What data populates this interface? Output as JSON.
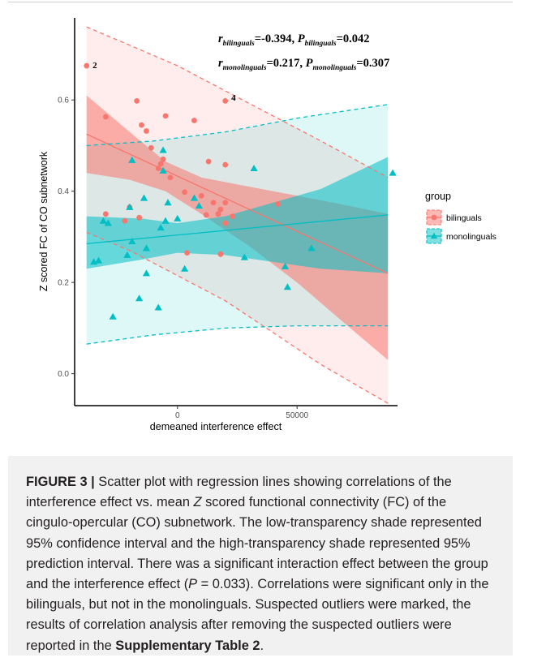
{
  "chart_data": {
    "type": "scatter",
    "xlabel": "demeaned interference effect",
    "ylabel": "Z scored FC of CO subnetwork",
    "xlim": [
      -43000,
      92000
    ],
    "ylim": [
      -0.07,
      0.78
    ],
    "xticks": [
      0,
      50000
    ],
    "xtick_labels": [
      "0",
      "50000"
    ],
    "yticks": [
      0.0,
      0.2,
      0.4,
      0.6
    ],
    "ytick_labels": [
      "0.0",
      "0.2",
      "0.4",
      "0.6"
    ],
    "grid": false,
    "legend_title": "group",
    "legend_position": "right",
    "series": [
      {
        "name": "bilinguals",
        "color": "#f8766d",
        "marker": "circle",
        "points": [
          [
            -38000,
            0.675
          ],
          [
            -30000,
            0.563
          ],
          [
            -17000,
            0.598
          ],
          [
            -15000,
            0.545
          ],
          [
            -13000,
            0.532
          ],
          [
            -5000,
            0.565
          ],
          [
            7000,
            0.555
          ],
          [
            20000,
            0.598
          ],
          [
            -11000,
            0.495
          ],
          [
            -7000,
            0.46
          ],
          [
            -6000,
            0.47
          ],
          [
            -8000,
            0.45
          ],
          [
            -3000,
            0.43
          ],
          [
            13000,
            0.465
          ],
          [
            20000,
            0.458
          ],
          [
            3000,
            0.398
          ],
          [
            10000,
            0.39
          ],
          [
            20000,
            0.375
          ],
          [
            15000,
            0.375
          ],
          [
            18000,
            0.36
          ],
          [
            23000,
            0.345
          ],
          [
            -30000,
            0.35
          ],
          [
            -20000,
            0.365
          ],
          [
            -22000,
            0.335
          ],
          [
            -16000,
            0.342
          ],
          [
            17000,
            0.35
          ],
          [
            12000,
            0.348
          ],
          [
            20000,
            0.33
          ],
          [
            42000,
            0.372
          ],
          [
            4000,
            0.265
          ],
          [
            18000,
            0.262
          ]
        ],
        "fit": {
          "x0": -38000,
          "y0": 0.525,
          "x1": 88000,
          "y1": 0.22
        },
        "conf_upper": [
          [
            -38000,
            0.61
          ],
          [
            -20000,
            0.53
          ],
          [
            -5000,
            0.465
          ],
          [
            10000,
            0.43
          ],
          [
            30000,
            0.41
          ],
          [
            50000,
            0.39
          ],
          [
            70000,
            0.37
          ],
          [
            88000,
            0.35
          ]
        ],
        "conf_lower": [
          [
            -38000,
            0.44
          ],
          [
            -20000,
            0.425
          ],
          [
            -5000,
            0.4
          ],
          [
            10000,
            0.35
          ],
          [
            30000,
            0.28
          ],
          [
            50000,
            0.2
          ],
          [
            70000,
            0.11
          ],
          [
            88000,
            0.03
          ]
        ],
        "pred_upper": [
          [
            -38000,
            0.76
          ],
          [
            -20000,
            0.72
          ],
          [
            0,
            0.675
          ],
          [
            20000,
            0.62
          ],
          [
            40000,
            0.565
          ],
          [
            60000,
            0.51
          ],
          [
            88000,
            0.43
          ]
        ],
        "pred_lower": [
          [
            -38000,
            0.31
          ],
          [
            -20000,
            0.27
          ],
          [
            0,
            0.215
          ],
          [
            20000,
            0.16
          ],
          [
            40000,
            0.09
          ],
          [
            60000,
            0.02
          ],
          [
            88000,
            -0.065
          ]
        ],
        "annotations": [
          {
            "text": "2",
            "x": -35500,
            "y": 0.677
          },
          {
            "text": "4",
            "x": 22500,
            "y": 0.606
          }
        ]
      },
      {
        "name": "monolinguals",
        "color": "#00bfc4",
        "marker": "triangle",
        "points": [
          [
            -35000,
            0.245
          ],
          [
            -33000,
            0.248
          ],
          [
            -27000,
            0.125
          ],
          [
            -20000,
            0.365
          ],
          [
            -21000,
            0.26
          ],
          [
            -19000,
            0.468
          ],
          [
            -16000,
            0.165
          ],
          [
            -14000,
            0.385
          ],
          [
            -13000,
            0.22
          ],
          [
            -13000,
            0.275
          ],
          [
            -8000,
            0.145
          ],
          [
            -6000,
            0.49
          ],
          [
            -6000,
            0.445
          ],
          [
            -5000,
            0.335
          ],
          [
            0,
            0.34
          ],
          [
            3000,
            0.23
          ],
          [
            7000,
            0.385
          ],
          [
            9000,
            0.368
          ],
          [
            28000,
            0.255
          ],
          [
            32000,
            0.45
          ],
          [
            -31000,
            0.335
          ],
          [
            -29000,
            0.33
          ],
          [
            -19000,
            0.29
          ],
          [
            -7000,
            0.32
          ],
          [
            45000,
            0.235
          ],
          [
            46000,
            0.19
          ],
          [
            56000,
            0.275
          ],
          [
            90000,
            0.44
          ],
          [
            -4000,
            0.375
          ]
        ],
        "fit": {
          "x0": -38000,
          "y0": 0.285,
          "x1": 88000,
          "y1": 0.348
        },
        "conf_upper": [
          [
            -38000,
            0.345
          ],
          [
            -15000,
            0.34
          ],
          [
            0,
            0.33
          ],
          [
            20000,
            0.345
          ],
          [
            40000,
            0.375
          ],
          [
            60000,
            0.405
          ],
          [
            88000,
            0.475
          ]
        ],
        "conf_lower": [
          [
            -38000,
            0.23
          ],
          [
            -15000,
            0.25
          ],
          [
            0,
            0.265
          ],
          [
            20000,
            0.26
          ],
          [
            40000,
            0.245
          ],
          [
            60000,
            0.23
          ],
          [
            88000,
            0.22
          ]
        ],
        "pred_upper": [
          [
            -38000,
            0.5
          ],
          [
            -10000,
            0.51
          ],
          [
            20000,
            0.53
          ],
          [
            50000,
            0.56
          ],
          [
            88000,
            0.59
          ]
        ],
        "pred_lower": [
          [
            -38000,
            0.065
          ],
          [
            -10000,
            0.085
          ],
          [
            20000,
            0.1
          ],
          [
            50000,
            0.105
          ],
          [
            88000,
            0.105
          ]
        ]
      }
    ],
    "stats_lines": [
      {
        "r_label": "r",
        "r_sub": "bilinguals",
        "r_value": "=-0.394, ",
        "p_label": "P",
        "p_sub": "bilinguals",
        "p_value": "=0.042"
      },
      {
        "r_label": "r",
        "r_sub": "monolinguals",
        "r_value": "=0.217, ",
        "p_label": "P",
        "p_sub": "monolinguals",
        "p_value": "=0.307"
      }
    ]
  },
  "caption": {
    "figure_label": "FIGURE 3 |",
    "seg1": " Scatter plot with regression lines showing correlations of the interference effect vs. mean ",
    "z": "Z",
    "seg2": " scored functional connectivity (FC) of the cingulo-opercular (CO) subnetwork. The low-transparency shade represented 95% confidence interval and the high-transparency shade represented 95% prediction interval. There was a significant interaction effect between the group and the interference effect (",
    "p": "P",
    "seg3": " = 0.033). Correlations were significant only in the bilinguals, but not in the monolinguals. Suspected outliers were marked, the results of correlation analysis after removing the suspected outliers were reported in the ",
    "link": "Supplementary Table 2",
    "seg4": "."
  }
}
